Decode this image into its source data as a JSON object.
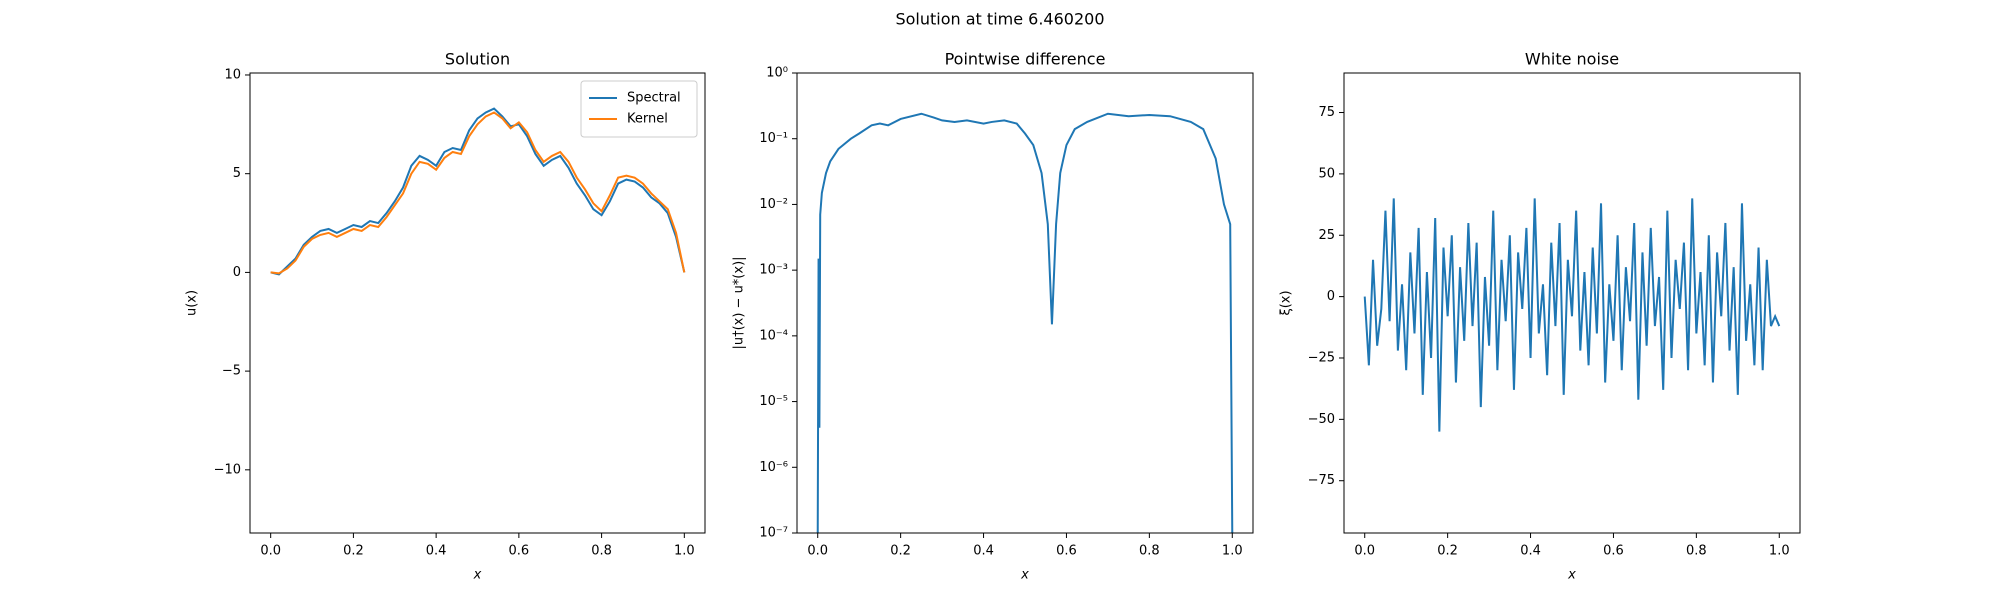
{
  "title": "Solution at time 6.460200",
  "chart_data": [
    {
      "type": "line",
      "title": "Solution",
      "xlabel": "x",
      "ylabel": "u(x)",
      "xlim": [
        -0.05,
        1.05
      ],
      "ylim": [
        -13.2,
        10.1
      ],
      "log_y": false,
      "legend": "upper right",
      "xticks": [
        {
          "value": 0,
          "label": "0.0"
        },
        0.2,
        0.4,
        0.6,
        0.8,
        {
          "value": 1,
          "label": "1.0"
        }
      ],
      "yticks": [
        {
          "value": -10,
          "label": "−10"
        },
        {
          "value": -5,
          "label": "−5"
        },
        0,
        5,
        10
      ],
      "x": [
        0,
        0.02,
        0.04,
        0.06,
        0.08,
        0.1,
        0.12,
        0.14,
        0.16,
        0.18,
        0.2,
        0.22,
        0.24,
        0.26,
        0.28,
        0.3,
        0.32,
        0.34,
        0.36,
        0.38,
        0.4,
        0.42,
        0.44,
        0.46,
        0.48,
        0.5,
        0.52,
        0.54,
        0.56,
        0.58,
        0.6,
        0.62,
        0.64,
        0.66,
        0.68,
        0.7,
        0.72,
        0.74,
        0.76,
        0.78,
        0.8,
        0.82,
        0.84,
        0.86,
        0.88,
        0.9,
        0.92,
        0.94,
        0.96,
        0.98,
        1.0
      ],
      "series": [
        {
          "name": "Spectral",
          "color": "#1f77b4",
          "values": [
            0,
            -0.1,
            0.3,
            0.7,
            1.4,
            1.8,
            2.1,
            2.2,
            2.0,
            2.2,
            2.4,
            2.3,
            2.6,
            2.5,
            3.0,
            3.6,
            4.3,
            5.4,
            5.9,
            5.7,
            5.4,
            6.1,
            6.3,
            6.2,
            7.2,
            7.8,
            8.1,
            8.3,
            7.9,
            7.4,
            7.5,
            6.9,
            6.0,
            5.4,
            5.7,
            5.9,
            5.3,
            4.5,
            3.9,
            3.2,
            2.9,
            3.6,
            4.5,
            4.7,
            4.6,
            4.3,
            3.8,
            3.5,
            3.0,
            1.8,
            0.0
          ]
        },
        {
          "name": "Kernel",
          "color": "#ff7f0e",
          "values": [
            0,
            -0.05,
            0.2,
            0.6,
            1.3,
            1.7,
            1.9,
            2.0,
            1.8,
            2.0,
            2.2,
            2.1,
            2.4,
            2.3,
            2.8,
            3.4,
            4.0,
            5.0,
            5.6,
            5.5,
            5.2,
            5.8,
            6.1,
            6.0,
            6.9,
            7.5,
            7.9,
            8.1,
            7.8,
            7.3,
            7.6,
            7.1,
            6.2,
            5.6,
            5.9,
            6.1,
            5.6,
            4.8,
            4.2,
            3.5,
            3.1,
            3.9,
            4.8,
            4.9,
            4.8,
            4.5,
            4.0,
            3.6,
            3.2,
            2.0,
            0.0
          ]
        }
      ]
    },
    {
      "type": "line",
      "title": "Pointwise difference",
      "xlabel": "x",
      "ylabel": "|u†(x) − u*(x)|",
      "xlim": [
        -0.05,
        1.05
      ],
      "ylim": [
        1e-07,
        1
      ],
      "log_y": true,
      "xticks": [
        {
          "value": 0,
          "label": "0.0"
        },
        0.2,
        0.4,
        0.6,
        0.8,
        {
          "value": 1,
          "label": "1.0"
        }
      ],
      "yticks": [
        {
          "value": 1e-07,
          "label": "10⁻⁷"
        },
        {
          "value": 1e-06,
          "label": "10⁻⁶"
        },
        {
          "value": 1e-05,
          "label": "10⁻⁵"
        },
        {
          "value": 0.0001,
          "label": "10⁻⁴"
        },
        {
          "value": 0.001,
          "label": "10⁻³"
        },
        {
          "value": 0.01,
          "label": "10⁻²"
        },
        {
          "value": 0.1,
          "label": "10⁻¹"
        },
        {
          "value": 1,
          "label": "10⁰"
        }
      ],
      "x": [
        0,
        0.002,
        0.004,
        0.006,
        0.01,
        0.02,
        0.03,
        0.05,
        0.08,
        0.1,
        0.13,
        0.15,
        0.17,
        0.2,
        0.25,
        0.28,
        0.3,
        0.33,
        0.36,
        0.4,
        0.42,
        0.45,
        0.48,
        0.5,
        0.52,
        0.54,
        0.555,
        0.565,
        0.575,
        0.585,
        0.6,
        0.62,
        0.65,
        0.7,
        0.75,
        0.8,
        0.85,
        0.9,
        0.93,
        0.96,
        0.98,
        0.995,
        1.0
      ],
      "series": [
        {
          "name": null,
          "color": "#1f77b4",
          "values": [
            1e-07,
            0.0015,
            4e-06,
            0.007,
            0.015,
            0.03,
            0.045,
            0.07,
            0.1,
            0.12,
            0.16,
            0.17,
            0.16,
            0.2,
            0.24,
            0.21,
            0.19,
            0.18,
            0.19,
            0.17,
            0.18,
            0.19,
            0.17,
            0.12,
            0.08,
            0.03,
            0.005,
            0.00015,
            0.005,
            0.03,
            0.08,
            0.14,
            0.18,
            0.24,
            0.22,
            0.23,
            0.22,
            0.18,
            0.14,
            0.05,
            0.01,
            0.005,
            1e-07
          ]
        }
      ]
    },
    {
      "type": "line",
      "title": "White noise",
      "xlabel": "x",
      "ylabel": "ξ(x)",
      "xlim": [
        -0.05,
        1.05
      ],
      "ylim": [
        -96.3,
        91.1
      ],
      "log_y": false,
      "xticks": [
        {
          "value": 0,
          "label": "0.0"
        },
        0.2,
        0.4,
        0.6,
        0.8,
        {
          "value": 1,
          "label": "1.0"
        }
      ],
      "yticks": [
        {
          "value": -75,
          "label": "−75"
        },
        {
          "value": -50,
          "label": "−50"
        },
        {
          "value": -25,
          "label": "−25"
        },
        0,
        25,
        50,
        75
      ],
      "x": [
        0,
        0.01,
        0.02,
        0.03,
        0.04,
        0.05,
        0.06,
        0.07,
        0.08,
        0.09,
        0.1,
        0.11,
        0.12,
        0.13,
        0.14,
        0.15,
        0.16,
        0.17,
        0.18,
        0.19,
        0.2,
        0.21,
        0.22,
        0.23,
        0.24,
        0.25,
        0.26,
        0.27,
        0.28,
        0.29,
        0.3,
        0.31,
        0.32,
        0.33,
        0.34,
        0.35,
        0.36,
        0.37,
        0.38,
        0.39,
        0.4,
        0.41,
        0.42,
        0.43,
        0.44,
        0.45,
        0.46,
        0.47,
        0.48,
        0.49,
        0.5,
        0.51,
        0.52,
        0.53,
        0.54,
        0.55,
        0.56,
        0.57,
        0.58,
        0.59,
        0.6,
        0.61,
        0.62,
        0.63,
        0.64,
        0.65,
        0.66,
        0.67,
        0.68,
        0.69,
        0.7,
        0.71,
        0.72,
        0.73,
        0.74,
        0.75,
        0.76,
        0.77,
        0.78,
        0.79,
        0.8,
        0.81,
        0.82,
        0.83,
        0.84,
        0.85,
        0.86,
        0.87,
        0.88,
        0.89,
        0.9,
        0.91,
        0.92,
        0.93,
        0.94,
        0.95,
        0.96,
        0.97,
        0.98,
        0.99,
        1.0
      ],
      "series": [
        {
          "name": null,
          "color": "#1f77b4",
          "values": [
            0,
            -28,
            15,
            -20,
            -5,
            35,
            -10,
            40,
            -22,
            5,
            -30,
            18,
            -15,
            28,
            -40,
            10,
            -25,
            32,
            -55,
            20,
            -8,
            25,
            -35,
            12,
            -18,
            30,
            -12,
            22,
            -45,
            8,
            -20,
            35,
            -30,
            15,
            -10,
            25,
            -38,
            18,
            -5,
            28,
            -25,
            40,
            -15,
            5,
            -32,
            22,
            -12,
            30,
            -40,
            15,
            -8,
            35,
            -22,
            10,
            -28,
            20,
            -15,
            38,
            -35,
            5,
            -18,
            25,
            -30,
            12,
            -10,
            30,
            -42,
            18,
            -20,
            28,
            -12,
            8,
            -38,
            35,
            -25,
            15,
            -5,
            22,
            -30,
            40,
            -15,
            10,
            -28,
            25,
            -35,
            18,
            -8,
            30,
            -22,
            12,
            -40,
            38,
            -18,
            5,
            -28,
            20,
            -30,
            15,
            -12,
            -8,
            -12
          ]
        }
      ]
    }
  ]
}
